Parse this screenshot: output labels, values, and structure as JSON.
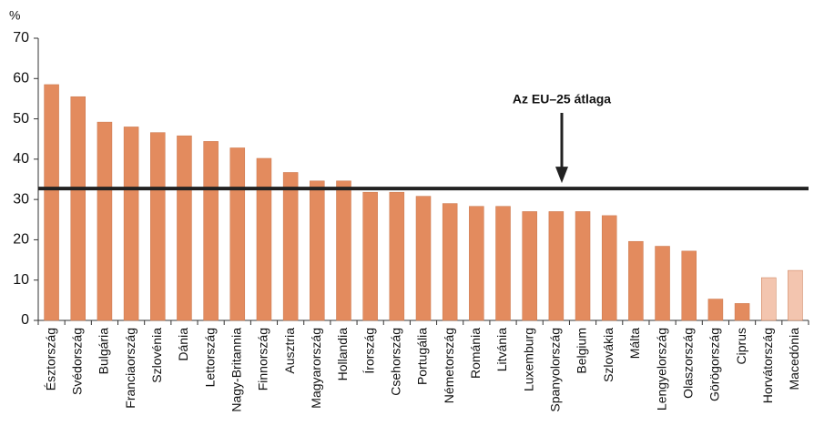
{
  "chart_data": {
    "type": "bar",
    "y_label": "%",
    "categories": [
      "Észtország",
      "Svédország",
      "Bulgária",
      "Franciaország",
      "Szlovénia",
      "Dánia",
      "Lettország",
      "Nagy-Britannia",
      "Finnország",
      "Ausztria",
      "Magyarország",
      "Hollandia",
      "Írország",
      "Csehország",
      "Portugália",
      "Németország",
      "Románia",
      "Litvánia",
      "Luxemburg",
      "Spanyolország",
      "Belgium",
      "Szlovákia",
      "Málta",
      "Lengyelország",
      "Olaszország",
      "Görögország",
      "Ciprus",
      "Horvátország",
      "Macedónia"
    ],
    "values": [
      58.5,
      55.5,
      49.2,
      48,
      46.6,
      45.8,
      44.4,
      42.8,
      40.2,
      36.7,
      34.6,
      34.6,
      31.8,
      31.8,
      30.8,
      29,
      28.3,
      28.3,
      27,
      27,
      27,
      26,
      19.6,
      18.4,
      17.2,
      5.3,
      4.2,
      10.6,
      12.4
    ],
    "colors": [
      "#e38b5e",
      "#e38b5e",
      "#e38b5e",
      "#e38b5e",
      "#e38b5e",
      "#e38b5e",
      "#e38b5e",
      "#e38b5e",
      "#e38b5e",
      "#e38b5e",
      "#e38b5e",
      "#e38b5e",
      "#e38b5e",
      "#e38b5e",
      "#e38b5e",
      "#e38b5e",
      "#e38b5e",
      "#e38b5e",
      "#e38b5e",
      "#e38b5e",
      "#e38b5e",
      "#e38b5e",
      "#e38b5e",
      "#e38b5e",
      "#e38b5e",
      "#e38b5e",
      "#e38b5e",
      "#f3c5af",
      "#f3c5af"
    ],
    "reference_line": {
      "value": 32.7,
      "label": "Az EU–25 átlaga"
    },
    "ylim": [
      0,
      70
    ],
    "yticks": [
      0,
      10,
      20,
      30,
      40,
      50,
      60,
      70
    ],
    "grid": false
  }
}
